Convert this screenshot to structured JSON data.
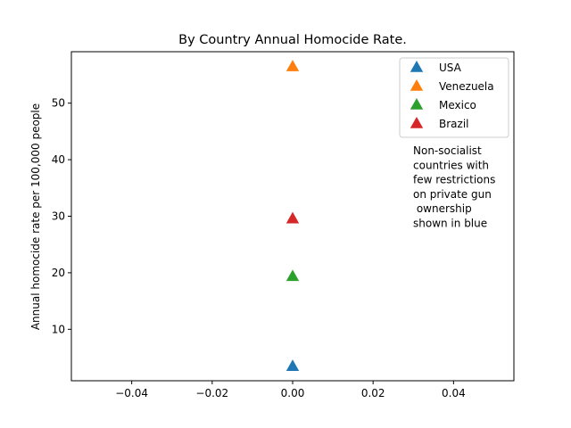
{
  "chart_data": {
    "type": "scatter",
    "title": "By Country Annual Homocide Rate.",
    "xlabel": "",
    "ylabel": "Annual homocide rate per 100,000 people",
    "xlim": [
      -0.055,
      0.055
    ],
    "ylim": [
      0.9,
      59.1
    ],
    "xticks": [
      -0.04,
      -0.02,
      0.0,
      0.02,
      0.04
    ],
    "xtick_labels": [
      "−0.04",
      "−0.02",
      "0.00",
      "0.02",
      "0.04"
    ],
    "yticks": [
      10,
      20,
      30,
      40,
      50
    ],
    "ytick_labels": [
      "10",
      "20",
      "30",
      "40",
      "50"
    ],
    "grid": false,
    "legend_position": "top-right",
    "marker": "triangle",
    "series": [
      {
        "name": "USA",
        "color": "#1f77b4",
        "x": [
          0
        ],
        "y": [
          3.4
        ]
      },
      {
        "name": "Venezuela",
        "color": "#ff7f0e",
        "x": [
          0
        ],
        "y": [
          56.4
        ]
      },
      {
        "name": "Mexico",
        "color": "#2ca02c",
        "x": [
          0
        ],
        "y": [
          19.3
        ]
      },
      {
        "name": "Brazil",
        "color": "#d62728",
        "x": [
          0
        ],
        "y": [
          29.5
        ]
      }
    ],
    "annotation": {
      "lines": [
        "Non-socialist",
        "countries with",
        "few restrictions",
        "on private gun",
        " ownership",
        "shown in blue"
      ]
    }
  }
}
